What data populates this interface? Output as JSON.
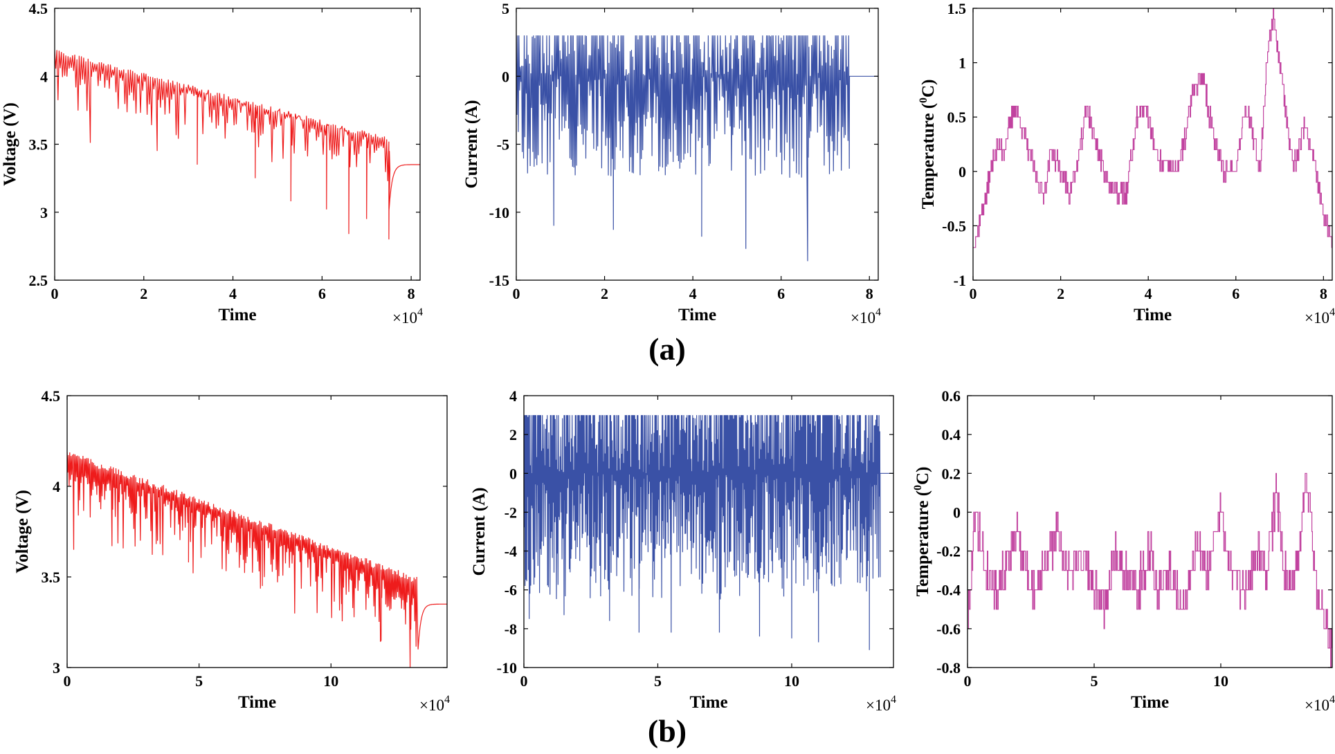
{
  "figure": {
    "row_labels": [
      "(a)",
      "(b)"
    ]
  },
  "chart_data": [
    {
      "id": "a-voltage",
      "type": "line",
      "row": "(a)",
      "xlabel": "Time",
      "ylabel": "Voltage (V)",
      "multiplier": "×10",
      "multiplier_exp": "4",
      "color": "#ee1c1c",
      "xlim": [
        0,
        8.2
      ],
      "ylim": [
        2.5,
        4.5
      ],
      "xticks": [
        0,
        2,
        4,
        6,
        8
      ],
      "xticklabels": [
        "0",
        "2",
        "4",
        "6",
        "8"
      ],
      "yticks": [
        2.5,
        3,
        3.5,
        4,
        4.5
      ],
      "yticklabels": [
        "2.5",
        "3",
        "3.5",
        "4",
        "4.5"
      ],
      "series": [
        {
          "name": "Voltage",
          "trend": {
            "x": [
              0,
              1,
              2,
              3,
              4,
              5,
              6,
              7,
              7.5
            ],
            "y": [
              4.1,
              4.03,
              3.96,
              3.9,
              3.83,
              3.75,
              3.66,
              3.55,
              3.45
            ]
          },
          "upper": {
            "x": [
              0,
              7.5
            ],
            "y": [
              4.2,
              3.55
            ]
          },
          "spikes": [
            [
              0.8,
              3.51
            ],
            [
              2.3,
              3.45
            ],
            [
              3.2,
              3.35
            ],
            [
              4.5,
              3.25
            ],
            [
              5.3,
              3.08
            ],
            [
              6.1,
              3.02
            ],
            [
              6.6,
              2.84
            ],
            [
              7.0,
              2.95
            ],
            [
              7.5,
              2.8
            ]
          ],
          "rest": {
            "x_start": 7.5,
            "x_end": 8.2,
            "y_start": 3.0,
            "y_end": 3.35
          },
          "period": 0.05,
          "seed": 11
        }
      ]
    },
    {
      "id": "a-current",
      "type": "line",
      "row": "(a)",
      "xlabel": "Time",
      "ylabel": "Current (A)",
      "multiplier": "×10",
      "multiplier_exp": "4",
      "color": "#3a51a6",
      "xlim": [
        0,
        8.2
      ],
      "ylim": [
        -15,
        5
      ],
      "xticks": [
        0,
        2,
        4,
        6,
        8
      ],
      "xticklabels": [
        "0",
        "2",
        "4",
        "6",
        "8"
      ],
      "yticks": [
        -15,
        -10,
        -5,
        0,
        5
      ],
      "yticklabels": [
        "-15",
        "-10",
        "-5",
        "0",
        "5"
      ],
      "series": [
        {
          "name": "Current",
          "active_until": 7.55,
          "max": 3,
          "typical_min": -5,
          "spikes": [
            [
              0.85,
              -11
            ],
            [
              2.2,
              -11.3
            ],
            [
              4.2,
              -11.8
            ],
            [
              5.2,
              -12.7
            ],
            [
              6.6,
              -13.6
            ]
          ],
          "rest_value": 0,
          "period": 0.03,
          "seed": 23
        }
      ]
    },
    {
      "id": "a-temperature",
      "type": "line",
      "row": "(a)",
      "xlabel": "Time",
      "ylabel": "Temperature (°C)",
      "multiplier": "×10",
      "multiplier_exp": "4",
      "color": "#c1429f",
      "xlim": [
        0,
        8.2
      ],
      "ylim": [
        -1,
        1.5
      ],
      "xticks": [
        0,
        2,
        4,
        6,
        8
      ],
      "xticklabels": [
        "0",
        "2",
        "4",
        "6",
        "8"
      ],
      "yticks": [
        -1,
        -0.5,
        0,
        0.5,
        1,
        1.5
      ],
      "yticklabels": [
        "-1",
        "-0.5",
        "0",
        "0.5",
        "1",
        "1.5"
      ],
      "series": [
        {
          "name": "Temperature",
          "x": [
            0,
            0.3,
            0.5,
            0.7,
            0.95,
            1.2,
            1.4,
            1.6,
            1.8,
            2.0,
            2.2,
            2.4,
            2.6,
            2.9,
            3.2,
            3.5,
            3.75,
            3.95,
            4.2,
            4.6,
            4.8,
            5.0,
            5.25,
            5.4,
            5.7,
            6.0,
            6.2,
            6.35,
            6.55,
            6.7,
            6.85,
            7.0,
            7.3,
            7.55,
            7.75,
            8.0,
            8.2
          ],
          "y": [
            -0.7,
            -0.2,
            0.2,
            0.2,
            0.6,
            0.3,
            0.0,
            -0.2,
            0.2,
            0.0,
            -0.2,
            0.1,
            0.6,
            0.1,
            -0.2,
            -0.2,
            0.5,
            0.6,
            0.1,
            0.0,
            0.2,
            0.7,
            0.9,
            0.5,
            0.0,
            0.05,
            0.6,
            0.4,
            0.0,
            1.0,
            1.45,
            1.0,
            0.0,
            0.4,
            0.2,
            -0.4,
            -0.7
          ],
          "jitter": 0.09,
          "seed": 37
        }
      ]
    },
    {
      "id": "b-voltage",
      "type": "line",
      "row": "(b)",
      "xlabel": "Time",
      "ylabel": "Voltage (V)",
      "multiplier": "×10",
      "multiplier_exp": "4",
      "color": "#ee1c1c",
      "xlim": [
        0,
        14.4
      ],
      "ylim": [
        3.0,
        4.5
      ],
      "xticks": [
        0,
        5,
        10
      ],
      "xticklabels": [
        "0",
        "5",
        "10"
      ],
      "yticks": [
        3.0,
        3.5,
        4.0,
        4.5
      ],
      "yticklabels": [
        "3",
        "3.5",
        "4",
        "4.5"
      ],
      "series": [
        {
          "name": "Voltage",
          "trend": {
            "x": [
              0,
              2,
              4,
              6,
              8,
              10,
              12,
              13.3
            ],
            "y": [
              4.08,
              4.02,
              3.93,
              3.82,
              3.71,
              3.61,
              3.48,
              3.38
            ]
          },
          "upper": {
            "x": [
              0,
              13.3
            ],
            "y": [
              4.2,
              3.5
            ]
          },
          "spikes": [
            [
              0.25,
              3.65
            ],
            [
              1.7,
              3.67
            ],
            [
              4.6,
              3.58
            ],
            [
              7.4,
              3.45
            ],
            [
              10.4,
              3.35
            ],
            [
              11.9,
              3.15
            ],
            [
              13.0,
              3.0
            ]
          ],
          "rest": {
            "x_start": 13.3,
            "x_end": 14.4,
            "y_start": 3.1,
            "y_end": 3.35
          },
          "period": 0.05,
          "seed": 53
        }
      ]
    },
    {
      "id": "b-current",
      "type": "line",
      "row": "(b)",
      "xlabel": "Time",
      "ylabel": "Current (A)",
      "multiplier": "×10",
      "multiplier_exp": "4",
      "color": "#3a51a6",
      "xlim": [
        0,
        13.8
      ],
      "ylim": [
        -10,
        4
      ],
      "xticks": [
        0,
        5,
        10
      ],
      "xticklabels": [
        "0",
        "5",
        "10"
      ],
      "yticks": [
        -10,
        -8,
        -6,
        -4,
        -2,
        0,
        2,
        4
      ],
      "yticklabels": [
        "-10",
        "-8",
        "-6",
        "-4",
        "-2",
        "0",
        "2",
        "4"
      ],
      "series": [
        {
          "name": "Current",
          "active_until": 13.3,
          "max": 3,
          "typical_min": -4,
          "spikes": [
            [
              0.2,
              -7.5
            ],
            [
              1.5,
              -7.3
            ],
            [
              3.2,
              -7.6
            ],
            [
              4.3,
              -8.2
            ],
            [
              5.5,
              -8.2
            ],
            [
              7.3,
              -8.2
            ],
            [
              8.8,
              -8.4
            ],
            [
              10.0,
              -8.5
            ],
            [
              11.0,
              -8.7
            ],
            [
              12.9,
              -9.1
            ]
          ],
          "rest_value": 0,
          "period": 0.03,
          "seed": 67
        }
      ]
    },
    {
      "id": "b-temperature",
      "type": "line",
      "row": "(b)",
      "xlabel": "Time",
      "ylabel": "Temperature (°C)",
      "multiplier": "×10",
      "multiplier_exp": "4",
      "color": "#c1429f",
      "xlim": [
        0,
        14.4
      ],
      "ylim": [
        -0.8,
        0.6
      ],
      "xticks": [
        0,
        5,
        10
      ],
      "xticklabels": [
        "0",
        "5",
        "10"
      ],
      "yticks": [
        -0.8,
        -0.6,
        -0.4,
        -0.2,
        0,
        0.2,
        0.4,
        0.6
      ],
      "yticklabels": [
        "-0.8",
        "-0.6",
        "-0.4",
        "-0.2",
        "0",
        "0.2",
        "0.4",
        "0.6"
      ],
      "series": [
        {
          "name": "Temperature",
          "x": [
            0,
            0.3,
            0.7,
            1.2,
            1.7,
            2.0,
            2.5,
            3.0,
            3.5,
            4.0,
            4.5,
            5.0,
            5.5,
            5.8,
            6.2,
            6.7,
            7.2,
            7.5,
            8.0,
            8.5,
            9.0,
            9.5,
            10.0,
            10.4,
            11.0,
            11.5,
            11.8,
            12.2,
            12.5,
            12.8,
            13.1,
            13.4,
            13.8,
            14.2,
            14.4
          ],
          "y": [
            -0.6,
            0.0,
            -0.3,
            -0.4,
            -0.2,
            -0.1,
            -0.4,
            -0.3,
            -0.1,
            -0.3,
            -0.2,
            -0.4,
            -0.5,
            -0.2,
            -0.3,
            -0.4,
            -0.2,
            -0.4,
            -0.3,
            -0.5,
            -0.2,
            -0.3,
            0.0,
            -0.3,
            -0.4,
            -0.2,
            -0.3,
            0.1,
            -0.3,
            -0.4,
            -0.2,
            0.2,
            -0.4,
            -0.6,
            -0.75
          ],
          "jitter": 0.1,
          "seed": 79
        }
      ]
    }
  ]
}
